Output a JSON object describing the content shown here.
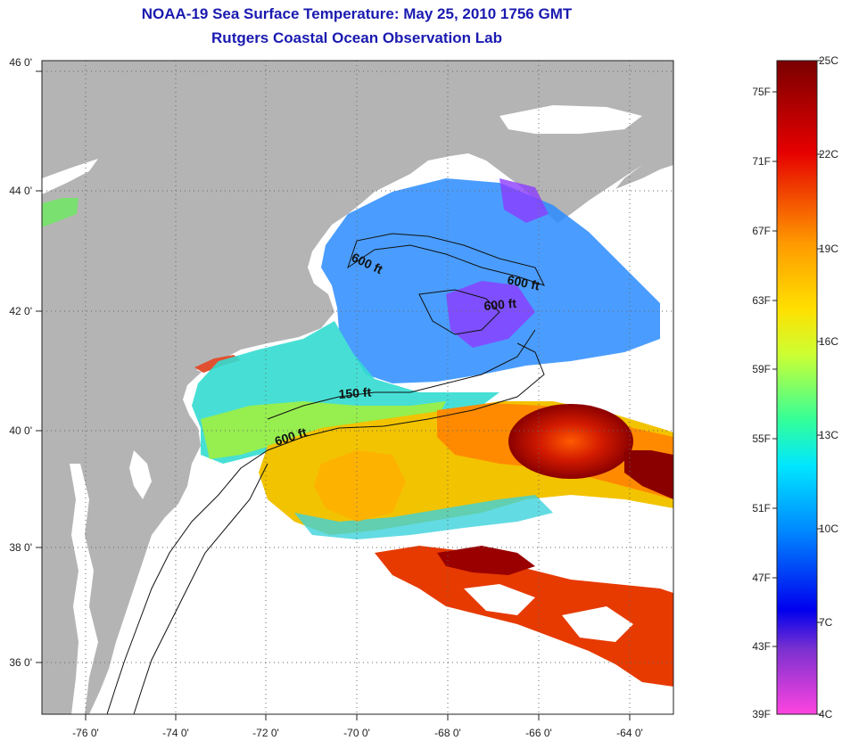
{
  "title": {
    "line1": "NOAA-19 Sea Surface Temperature:  May 25, 2010 1756 GMT",
    "line2": "Rutgers Coastal Ocean Observation Lab"
  },
  "axes": {
    "lon_labels": [
      "-76 0'",
      "-74 0'",
      "-72 0'",
      "-70 0'",
      "-68 0'",
      "-66 0'",
      "-64 0'"
    ],
    "lat_labels": [
      "46 0'",
      "44 0'",
      "42 0'",
      "40 0'",
      "38 0'",
      "36 0'"
    ],
    "lon_range": [
      -77,
      -63
    ],
    "lat_range": [
      35,
      46
    ],
    "grid": "dotted"
  },
  "contour_labels": [
    {
      "text": "600 ft"
    },
    {
      "text": "600 ft"
    },
    {
      "text": "600 ft"
    },
    {
      "text": "150 ft"
    },
    {
      "text": "600 ft"
    }
  ],
  "colorbar": {
    "fahrenheit": [
      "75F",
      "71F",
      "67F",
      "63F",
      "59F",
      "55F",
      "51F",
      "47F",
      "43F",
      "39F"
    ],
    "celsius": [
      "25C",
      "22C",
      "19C",
      "16C",
      "13C",
      "10C",
      "7C",
      "4C"
    ]
  },
  "colors": {
    "land": "#b4b4b4",
    "title": "#1a1ab0"
  }
}
